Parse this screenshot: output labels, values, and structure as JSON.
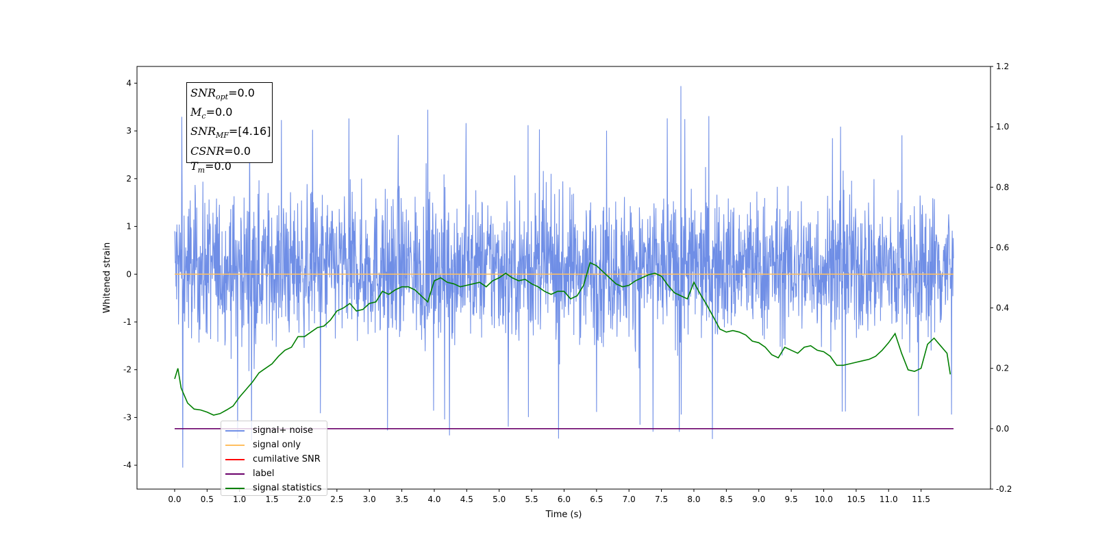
{
  "chart_data": {
    "type": "line",
    "xlabel": "Time (s)",
    "ylabel": "Whitened strain",
    "xlim": [
      -0.58,
      12.57
    ],
    "ylim": [
      -4.5,
      4.35
    ],
    "y2lim": [
      -0.2,
      1.2
    ],
    "x_ticks": [
      "0.0",
      "0.5",
      "1.0",
      "1.5",
      "2.0",
      "2.5",
      "3.0",
      "3.5",
      "4.0",
      "4.5",
      "5.0",
      "5.5",
      "6.0",
      "6.5",
      "7.0",
      "7.5",
      "8.0",
      "8.5",
      "9.0",
      "9.5",
      "10.0",
      "10.5",
      "11.0",
      "11.5"
    ],
    "y_ticks": [
      "-4",
      "-3",
      "-2",
      "-1",
      "0",
      "1",
      "2",
      "3",
      "4"
    ],
    "y2_ticks": [
      "-0.2",
      "0.0",
      "0.2",
      "0.4",
      "0.6",
      "0.8",
      "1.0",
      "1.2"
    ],
    "annotation": {
      "lines": [
        {
          "sym": "SNR",
          "sub": "opt",
          "val": "=0.0"
        },
        {
          "sym": "M",
          "sub": "c",
          "val": "=0.0"
        },
        {
          "sym": "SNR",
          "sub": "MF",
          "val": "=[4.16]"
        },
        {
          "sym": "CSNR",
          "sub": "",
          "val": "=0.0"
        },
        {
          "sym": "T",
          "sub": "m",
          "val": "=0.0"
        }
      ]
    },
    "legend": [
      {
        "label": "signal+ noise",
        "color": "#6f8ee6"
      },
      {
        "label": "signal only",
        "color": "#ffbf5f"
      },
      {
        "label": "cumilative SNR",
        "color": "#ff0000"
      },
      {
        "label": "label",
        "color": "#6a006a"
      },
      {
        "label": "signal statistics",
        "color": "#007f00"
      }
    ],
    "series": [
      {
        "name": "signal+ noise",
        "axis": "left",
        "color": "#6f8ee6",
        "x_range": [
          0.0,
          12.0
        ],
        "envelope_upper": 2.4,
        "envelope_lower": -2.1,
        "peak_max": 3.94,
        "peak_min": -4.05
      },
      {
        "name": "signal only",
        "axis": "left",
        "color": "#ffbf5f",
        "x": [
          0.0,
          12.0
        ],
        "values": [
          0.0,
          0.0
        ]
      },
      {
        "name": "label",
        "axis": "right",
        "color": "#6a006a",
        "x": [
          0.0,
          12.0
        ],
        "values": [
          0.0,
          0.0
        ]
      },
      {
        "name": "signal statistics",
        "axis": "right",
        "color": "#007f00",
        "x": [
          0.0,
          0.05,
          0.1,
          0.2,
          0.3,
          0.4,
          0.5,
          0.6,
          0.7,
          0.8,
          0.9,
          1.0,
          1.1,
          1.2,
          1.3,
          1.4,
          1.5,
          1.6,
          1.7,
          1.8,
          1.9,
          2.0,
          2.1,
          2.2,
          2.3,
          2.4,
          2.5,
          2.6,
          2.7,
          2.8,
          2.9,
          3.0,
          3.1,
          3.2,
          3.3,
          3.4,
          3.5,
          3.6,
          3.7,
          3.8,
          3.9,
          4.0,
          4.1,
          4.2,
          4.3,
          4.4,
          4.5,
          4.6,
          4.7,
          4.8,
          4.9,
          5.0,
          5.1,
          5.2,
          5.3,
          5.4,
          5.5,
          5.6,
          5.7,
          5.8,
          5.9,
          6.0,
          6.1,
          6.2,
          6.3,
          6.4,
          6.5,
          6.6,
          6.7,
          6.8,
          6.9,
          7.0,
          7.1,
          7.2,
          7.3,
          7.4,
          7.5,
          7.6,
          7.7,
          7.8,
          7.9,
          8.0,
          8.1,
          8.2,
          8.3,
          8.4,
          8.5,
          8.6,
          8.7,
          8.8,
          8.9,
          9.0,
          9.1,
          9.2,
          9.3,
          9.4,
          9.5,
          9.6,
          9.7,
          9.8,
          9.9,
          10.0,
          10.1,
          10.2,
          10.3,
          10.4,
          10.5,
          10.6,
          10.7,
          10.8,
          10.9,
          11.0,
          11.1,
          11.2,
          11.3,
          11.4,
          11.5,
          11.6,
          11.7,
          11.8,
          11.9,
          11.95
        ],
        "values": [
          0.165,
          0.2,
          0.135,
          0.085,
          0.065,
          0.062,
          0.055,
          0.045,
          0.05,
          0.062,
          0.075,
          0.105,
          0.13,
          0.155,
          0.185,
          0.2,
          0.215,
          0.24,
          0.26,
          0.27,
          0.305,
          0.305,
          0.32,
          0.335,
          0.34,
          0.36,
          0.39,
          0.4,
          0.415,
          0.39,
          0.395,
          0.415,
          0.42,
          0.455,
          0.445,
          0.46,
          0.47,
          0.47,
          0.46,
          0.44,
          0.42,
          0.49,
          0.5,
          0.485,
          0.48,
          0.47,
          0.475,
          0.48,
          0.485,
          0.47,
          0.49,
          0.5,
          0.515,
          0.5,
          0.49,
          0.495,
          0.48,
          0.47,
          0.455,
          0.445,
          0.455,
          0.455,
          0.43,
          0.44,
          0.475,
          0.55,
          0.54,
          0.52,
          0.5,
          0.48,
          0.47,
          0.475,
          0.49,
          0.5,
          0.51,
          0.515,
          0.505,
          0.475,
          0.45,
          0.44,
          0.43,
          0.485,
          0.445,
          0.41,
          0.37,
          0.33,
          0.32,
          0.325,
          0.32,
          0.31,
          0.29,
          0.285,
          0.27,
          0.245,
          0.235,
          0.27,
          0.26,
          0.25,
          0.27,
          0.275,
          0.26,
          0.255,
          0.24,
          0.21,
          0.21,
          0.215,
          0.22,
          0.225,
          0.23,
          0.24,
          0.26,
          0.285,
          0.315,
          0.25,
          0.195,
          0.19,
          0.2,
          0.28,
          0.3,
          0.275,
          0.25,
          0.18
        ]
      }
    ]
  }
}
